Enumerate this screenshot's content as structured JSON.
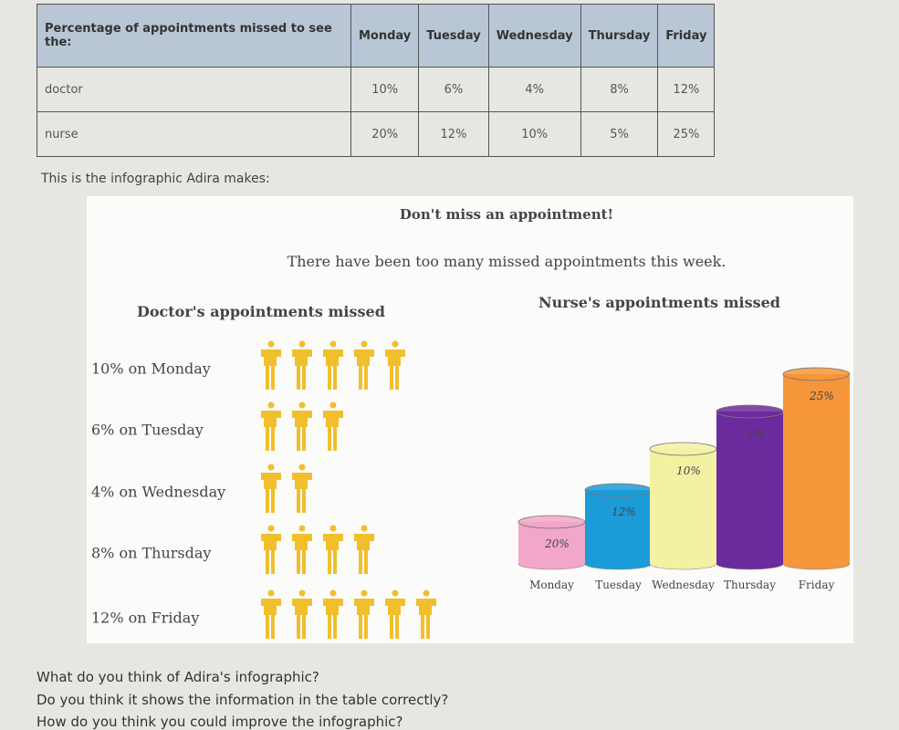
{
  "table": {
    "header": [
      "Percentage of appointments missed to see the:",
      "Monday",
      "Tuesday",
      "Wednesday",
      "Thursday",
      "Friday"
    ],
    "rows": [
      [
        "doctor",
        "10%",
        "6%",
        "4%",
        "8%",
        "12%"
      ],
      [
        "nurse",
        "20%",
        "12%",
        "10%",
        "5%",
        "25%"
      ]
    ]
  },
  "caption": "This is the infographic Adira makes:",
  "infographic": {
    "title": "Don't miss an appointment!",
    "subtitle": "There have been too many missed appointments this week.",
    "doctor": {
      "heading": "Doctor's appointments missed",
      "rows": [
        {
          "label": "10% on Monday",
          "icons": 5
        },
        {
          "label": "6% on Tuesday",
          "icons": 3
        },
        {
          "label": "4% on Wednesday",
          "icons": 2
        },
        {
          "label": "8% on Thursday",
          "icons": 4
        },
        {
          "label": "12% on Friday",
          "icons": 6
        }
      ]
    },
    "nurse": {
      "heading": "Nurse's appointments missed",
      "categories": [
        "Monday",
        "Tuesday",
        "Wednesday",
        "Thursday",
        "Friday"
      ],
      "labels": [
        "20%",
        "12%",
        "10%",
        "5%",
        "25%"
      ]
    }
  },
  "questions": [
    "What do you think of Adira's infographic?",
    "Do you think it shows the information in the table correctly?",
    "How do you think you could improve the infographic?"
  ]
}
